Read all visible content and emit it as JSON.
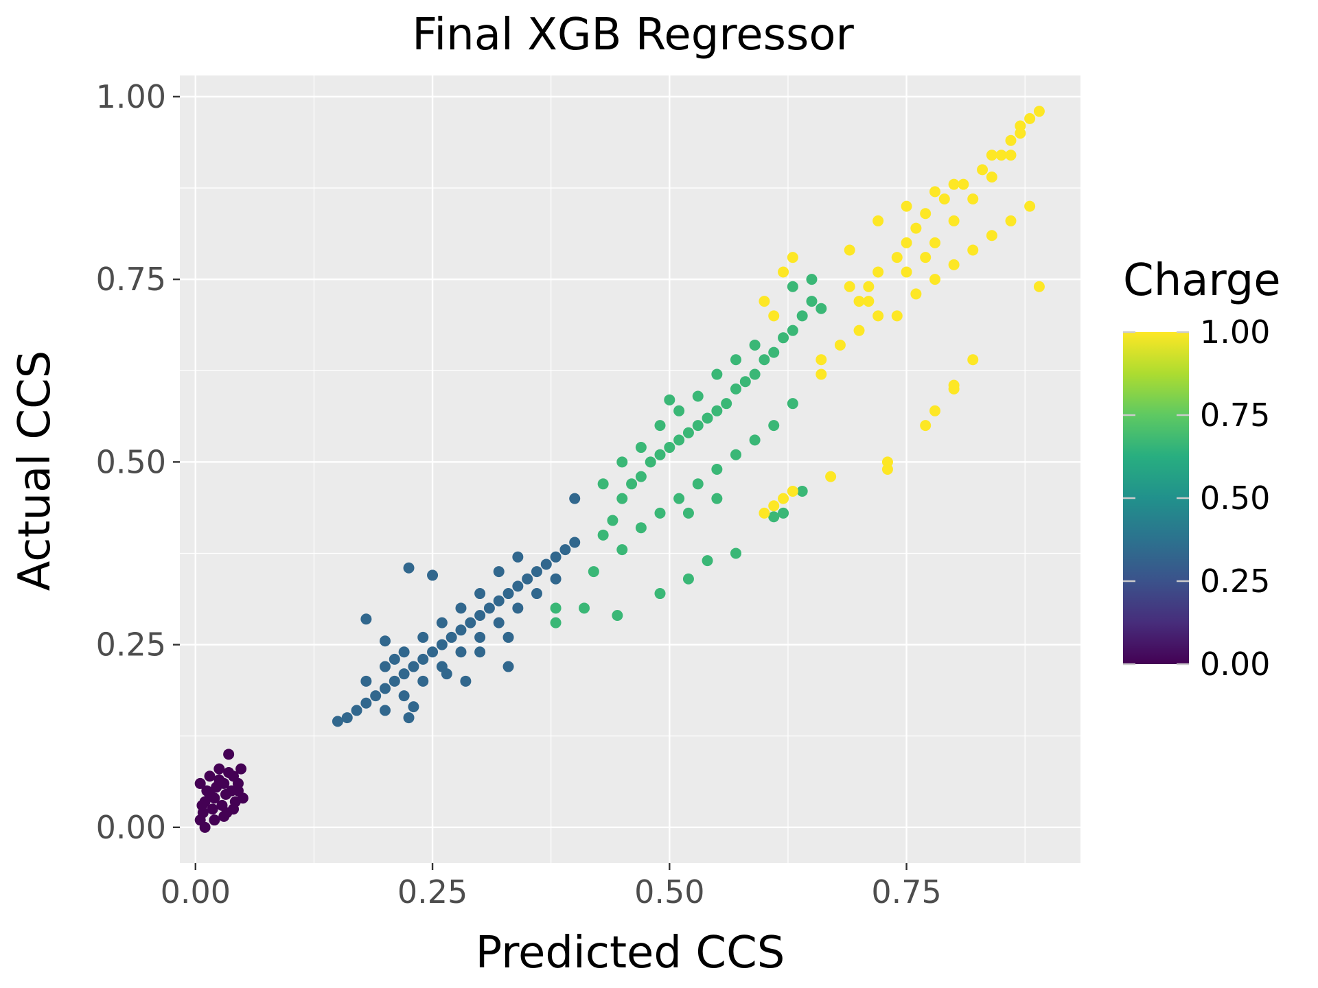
{
  "chart_data": {
    "type": "scatter",
    "title": "Final XGB Regressor",
    "xlabel": "Predicted CCS",
    "ylabel": "Actual CCS",
    "xlim": [
      -0.0165,
      0.9335
    ],
    "ylim": [
      -0.049,
      1.029
    ],
    "x_ticks": [
      {
        "value": 0.0,
        "label": "0.00"
      },
      {
        "value": 0.25,
        "label": "0.25"
      },
      {
        "value": 0.5,
        "label": "0.50"
      },
      {
        "value": 0.75,
        "label": "0.75"
      }
    ],
    "y_ticks": [
      {
        "value": 0.0,
        "label": "0.00"
      },
      {
        "value": 0.25,
        "label": "0.25"
      },
      {
        "value": 0.5,
        "label": "0.50"
      },
      {
        "value": 0.75,
        "label": "0.75"
      },
      {
        "value": 1.0,
        "label": "1.00"
      }
    ],
    "grid": true,
    "legend": {
      "title": "Charge",
      "placement": "right",
      "type": "colorbar",
      "range": [
        0,
        1
      ],
      "ticks": [
        {
          "value": 0.0,
          "label": "0.00"
        },
        {
          "value": 0.25,
          "label": "0.25"
        },
        {
          "value": 0.5,
          "label": "0.50"
        },
        {
          "value": 0.75,
          "label": "0.75"
        },
        {
          "value": 1.0,
          "label": "1.00"
        }
      ],
      "colormap": "viridis"
    },
    "colors": {
      "panel_background": "#ebebeb",
      "grid": "#ffffff",
      "charge_0": "#440154",
      "charge_033": "#31688e",
      "charge_067": "#35b779",
      "charge_1": "#fde725"
    },
    "series": [
      {
        "charge": 0.0,
        "points": [
          [
            0.005,
            0.01
          ],
          [
            0.008,
            0.02
          ],
          [
            0.01,
            0.035
          ],
          [
            0.012,
            0.05
          ],
          [
            0.005,
            0.06
          ],
          [
            0.015,
            0.07
          ],
          [
            0.018,
            0.025
          ],
          [
            0.02,
            0.04
          ],
          [
            0.022,
            0.055
          ],
          [
            0.025,
            0.08
          ],
          [
            0.028,
            0.03
          ],
          [
            0.03,
            0.06
          ],
          [
            0.032,
            0.045
          ],
          [
            0.035,
            0.1
          ],
          [
            0.038,
            0.05
          ],
          [
            0.04,
            0.07
          ],
          [
            0.042,
            0.035
          ],
          [
            0.045,
            0.06
          ],
          [
            0.048,
            0.08
          ],
          [
            0.05,
            0.04
          ],
          [
            0.01,
            0.0
          ],
          [
            0.02,
            0.01
          ],
          [
            0.03,
            0.015
          ],
          [
            0.04,
            0.025
          ],
          [
            0.015,
            0.045
          ],
          [
            0.025,
            0.065
          ],
          [
            0.035,
            0.075
          ],
          [
            0.045,
            0.05
          ],
          [
            0.007,
            0.03
          ],
          [
            0.033,
            0.02
          ]
        ]
      },
      {
        "charge": 0.333,
        "points": [
          [
            0.15,
            0.145
          ],
          [
            0.16,
            0.15
          ],
          [
            0.17,
            0.16
          ],
          [
            0.18,
            0.17
          ],
          [
            0.19,
            0.18
          ],
          [
            0.2,
            0.19
          ],
          [
            0.21,
            0.2
          ],
          [
            0.22,
            0.21
          ],
          [
            0.23,
            0.22
          ],
          [
            0.24,
            0.23
          ],
          [
            0.25,
            0.24
          ],
          [
            0.26,
            0.25
          ],
          [
            0.27,
            0.26
          ],
          [
            0.28,
            0.27
          ],
          [
            0.29,
            0.28
          ],
          [
            0.3,
            0.29
          ],
          [
            0.31,
            0.3
          ],
          [
            0.32,
            0.31
          ],
          [
            0.33,
            0.32
          ],
          [
            0.34,
            0.33
          ],
          [
            0.35,
            0.34
          ],
          [
            0.36,
            0.35
          ],
          [
            0.37,
            0.36
          ],
          [
            0.38,
            0.37
          ],
          [
            0.39,
            0.38
          ],
          [
            0.4,
            0.39
          ],
          [
            0.4,
            0.45
          ],
          [
            0.2,
            0.16
          ],
          [
            0.22,
            0.18
          ],
          [
            0.24,
            0.2
          ],
          [
            0.26,
            0.22
          ],
          [
            0.28,
            0.24
          ],
          [
            0.3,
            0.26
          ],
          [
            0.32,
            0.28
          ],
          [
            0.34,
            0.3
          ],
          [
            0.36,
            0.32
          ],
          [
            0.38,
            0.34
          ],
          [
            0.18,
            0.2
          ],
          [
            0.2,
            0.22
          ],
          [
            0.22,
            0.24
          ],
          [
            0.24,
            0.26
          ],
          [
            0.26,
            0.28
          ],
          [
            0.28,
            0.3
          ],
          [
            0.3,
            0.32
          ],
          [
            0.32,
            0.35
          ],
          [
            0.34,
            0.37
          ],
          [
            0.18,
            0.285
          ],
          [
            0.225,
            0.355
          ],
          [
            0.25,
            0.345
          ],
          [
            0.225,
            0.15
          ],
          [
            0.23,
            0.165
          ],
          [
            0.33,
            0.26
          ],
          [
            0.3,
            0.24
          ],
          [
            0.33,
            0.22
          ],
          [
            0.285,
            0.2
          ],
          [
            0.265,
            0.21
          ],
          [
            0.2,
            0.255
          ],
          [
            0.21,
            0.23
          ]
        ]
      },
      {
        "charge": 0.667,
        "points": [
          [
            0.41,
            0.3
          ],
          [
            0.42,
            0.35
          ],
          [
            0.43,
            0.4
          ],
          [
            0.44,
            0.42
          ],
          [
            0.45,
            0.45
          ],
          [
            0.46,
            0.47
          ],
          [
            0.47,
            0.48
          ],
          [
            0.48,
            0.5
          ],
          [
            0.49,
            0.51
          ],
          [
            0.5,
            0.52
          ],
          [
            0.51,
            0.53
          ],
          [
            0.52,
            0.54
          ],
          [
            0.53,
            0.55
          ],
          [
            0.54,
            0.56
          ],
          [
            0.55,
            0.57
          ],
          [
            0.56,
            0.58
          ],
          [
            0.57,
            0.6
          ],
          [
            0.58,
            0.61
          ],
          [
            0.59,
            0.62
          ],
          [
            0.6,
            0.64
          ],
          [
            0.61,
            0.65
          ],
          [
            0.62,
            0.67
          ],
          [
            0.63,
            0.68
          ],
          [
            0.64,
            0.7
          ],
          [
            0.65,
            0.72
          ],
          [
            0.66,
            0.71
          ],
          [
            0.45,
            0.38
          ],
          [
            0.47,
            0.41
          ],
          [
            0.49,
            0.43
          ],
          [
            0.51,
            0.45
          ],
          [
            0.53,
            0.47
          ],
          [
            0.55,
            0.49
          ],
          [
            0.57,
            0.51
          ],
          [
            0.59,
            0.53
          ],
          [
            0.61,
            0.55
          ],
          [
            0.63,
            0.58
          ],
          [
            0.43,
            0.47
          ],
          [
            0.45,
            0.5
          ],
          [
            0.47,
            0.52
          ],
          [
            0.49,
            0.55
          ],
          [
            0.51,
            0.57
          ],
          [
            0.53,
            0.59
          ],
          [
            0.55,
            0.62
          ],
          [
            0.57,
            0.64
          ],
          [
            0.59,
            0.66
          ],
          [
            0.38,
            0.28
          ],
          [
            0.38,
            0.3
          ],
          [
            0.445,
            0.29
          ],
          [
            0.49,
            0.32
          ],
          [
            0.52,
            0.34
          ],
          [
            0.54,
            0.365
          ],
          [
            0.57,
            0.375
          ],
          [
            0.64,
            0.46
          ],
          [
            0.62,
            0.43
          ],
          [
            0.61,
            0.425
          ],
          [
            0.63,
            0.74
          ],
          [
            0.65,
            0.75
          ],
          [
            0.5,
            0.585
          ],
          [
            0.52,
            0.43
          ],
          [
            0.55,
            0.45
          ]
        ]
      },
      {
        "charge": 1.0,
        "points": [
          [
            0.6,
            0.43
          ],
          [
            0.61,
            0.44
          ],
          [
            0.62,
            0.45
          ],
          [
            0.63,
            0.46
          ],
          [
            0.6,
            0.72
          ],
          [
            0.61,
            0.7
          ],
          [
            0.62,
            0.76
          ],
          [
            0.63,
            0.78
          ],
          [
            0.67,
            0.48
          ],
          [
            0.69,
            0.79
          ],
          [
            0.7,
            0.72
          ],
          [
            0.71,
            0.74
          ],
          [
            0.72,
            0.76
          ],
          [
            0.73,
            0.5
          ],
          [
            0.74,
            0.78
          ],
          [
            0.75,
            0.8
          ],
          [
            0.76,
            0.82
          ],
          [
            0.77,
            0.84
          ],
          [
            0.78,
            0.8
          ],
          [
            0.79,
            0.86
          ],
          [
            0.8,
            0.83
          ],
          [
            0.81,
            0.88
          ],
          [
            0.82,
            0.86
          ],
          [
            0.83,
            0.9
          ],
          [
            0.84,
            0.89
          ],
          [
            0.85,
            0.92
          ],
          [
            0.86,
            0.94
          ],
          [
            0.87,
            0.96
          ],
          [
            0.88,
            0.97
          ],
          [
            0.89,
            0.98
          ],
          [
            0.89,
            0.74
          ],
          [
            0.77,
            0.55
          ],
          [
            0.78,
            0.57
          ],
          [
            0.8,
            0.6
          ],
          [
            0.8,
            0.605
          ],
          [
            0.82,
            0.64
          ],
          [
            0.72,
            0.83
          ],
          [
            0.75,
            0.85
          ],
          [
            0.78,
            0.87
          ],
          [
            0.8,
            0.88
          ],
          [
            0.74,
            0.7
          ],
          [
            0.76,
            0.73
          ],
          [
            0.78,
            0.75
          ],
          [
            0.8,
            0.77
          ],
          [
            0.82,
            0.79
          ],
          [
            0.84,
            0.81
          ],
          [
            0.86,
            0.83
          ],
          [
            0.88,
            0.85
          ],
          [
            0.66,
            0.62
          ],
          [
            0.66,
            0.64
          ],
          [
            0.68,
            0.66
          ],
          [
            0.7,
            0.68
          ],
          [
            0.72,
            0.7
          ],
          [
            0.73,
            0.49
          ],
          [
            0.84,
            0.92
          ],
          [
            0.86,
            0.92
          ],
          [
            0.87,
            0.95
          ],
          [
            0.69,
            0.74
          ],
          [
            0.71,
            0.72
          ],
          [
            0.75,
            0.76
          ],
          [
            0.77,
            0.78
          ]
        ]
      }
    ]
  }
}
